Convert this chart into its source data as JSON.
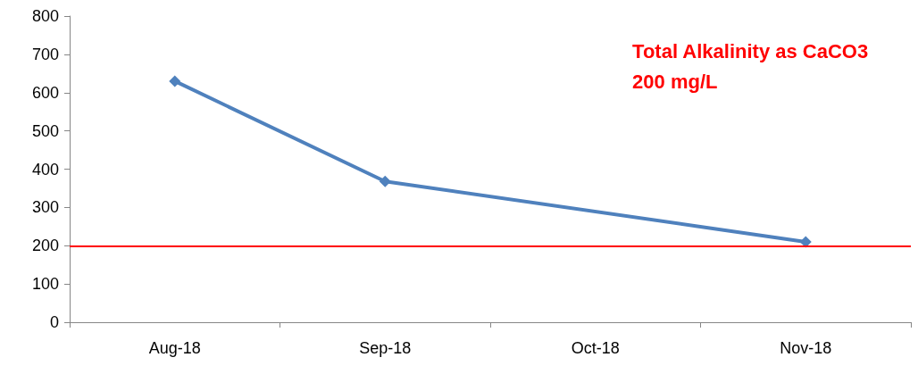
{
  "chart_data": {
    "type": "line",
    "categories": [
      "Aug-18",
      "Sep-18",
      "Oct-18",
      "Nov-18"
    ],
    "series": [
      {
        "color": "#4f81bd",
        "values": [
          630,
          368,
          null,
          210
        ]
      }
    ],
    "ylim": [
      0,
      800
    ],
    "yticks": [
      0,
      100,
      200,
      300,
      400,
      500,
      600,
      700,
      800
    ],
    "grid": false,
    "marker": "diamond",
    "line_style": "solid",
    "ref_lines": [
      {
        "axis": "y",
        "value": 200,
        "label": "Total Alkalinity as CaCO3\n200 mg/L",
        "color": "#ff0000"
      }
    ]
  }
}
